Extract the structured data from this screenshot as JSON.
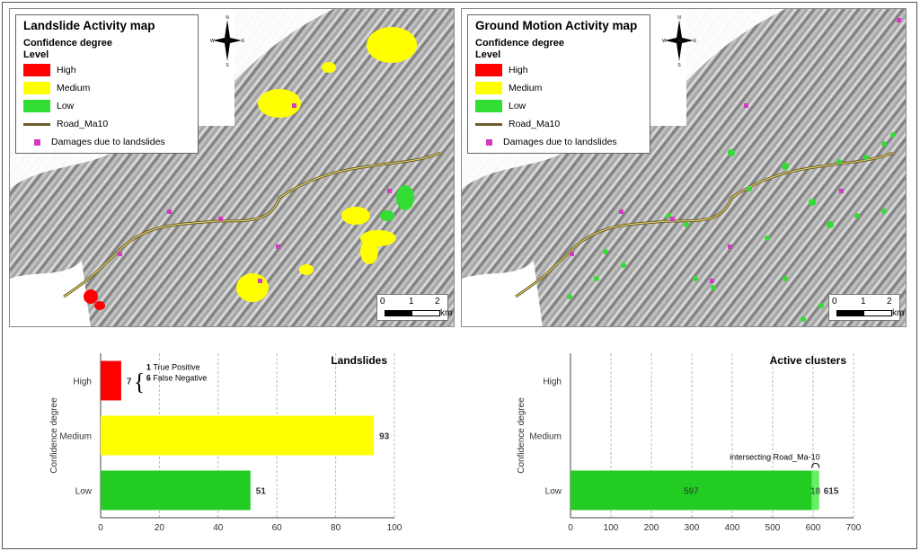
{
  "maps": [
    {
      "title": "Landslide Activity map",
      "legend_heading": "Confidence degree",
      "legend_level": "Level",
      "legend_items": [
        {
          "label": "High",
          "color": "#ff0000"
        },
        {
          "label": "Medium",
          "color": "#ffff00"
        },
        {
          "label": "Low",
          "color": "#33dd33"
        }
      ],
      "road_label": "Road_Ma10",
      "damage_label": "Damages due to landslides",
      "scale_labels": [
        "0",
        "1",
        "2",
        "km"
      ]
    },
    {
      "title": "Ground Motion Activity map",
      "legend_heading": "Confidence degree",
      "legend_level": "Level",
      "legend_items": [
        {
          "label": "High",
          "color": "#ff0000"
        },
        {
          "label": "Medium",
          "color": "#ffff00"
        },
        {
          "label": "Low",
          "color": "#33dd33"
        }
      ],
      "road_label": "Road_Ma10",
      "damage_label": "Damages due to landslides",
      "scale_labels": [
        "0",
        "1",
        "2",
        "km"
      ]
    }
  ],
  "compass": {
    "n": "N",
    "s": "S",
    "e": "E",
    "w": "W"
  },
  "chart_data": [
    {
      "type": "bar",
      "orientation": "horizontal",
      "title": "Landslides",
      "ylabel": "Confidence degree",
      "categories": [
        "High",
        "Medium",
        "Low"
      ],
      "values": [
        7,
        93,
        51
      ],
      "colors": [
        "#ff0000",
        "#ffff00",
        "#22cc22"
      ],
      "xlim": [
        0,
        100
      ],
      "xticks": [
        0,
        20,
        40,
        60,
        80,
        100
      ],
      "annotation": {
        "brace": "{",
        "lines": [
          {
            "num": "1",
            "text": "True Positive"
          },
          {
            "num": "6",
            "text": "False Negative"
          }
        ]
      }
    },
    {
      "type": "bar",
      "orientation": "horizontal",
      "title": "Active clusters",
      "ylabel": "Confidence degree",
      "categories": [
        "High",
        "Medium",
        "Low"
      ],
      "values": [
        0,
        0,
        615
      ],
      "stack": [
        {
          "category": "Low",
          "value": 597,
          "color": "#22cc22"
        },
        {
          "category": "Low",
          "value": 18,
          "color": "#66ee66"
        }
      ],
      "total_label": "615",
      "xlim": [
        0,
        700
      ],
      "xticks": [
        0,
        100,
        200,
        300,
        400,
        500,
        600,
        700
      ],
      "annotation": {
        "text": "intersecting Road_Ma-10"
      }
    }
  ]
}
